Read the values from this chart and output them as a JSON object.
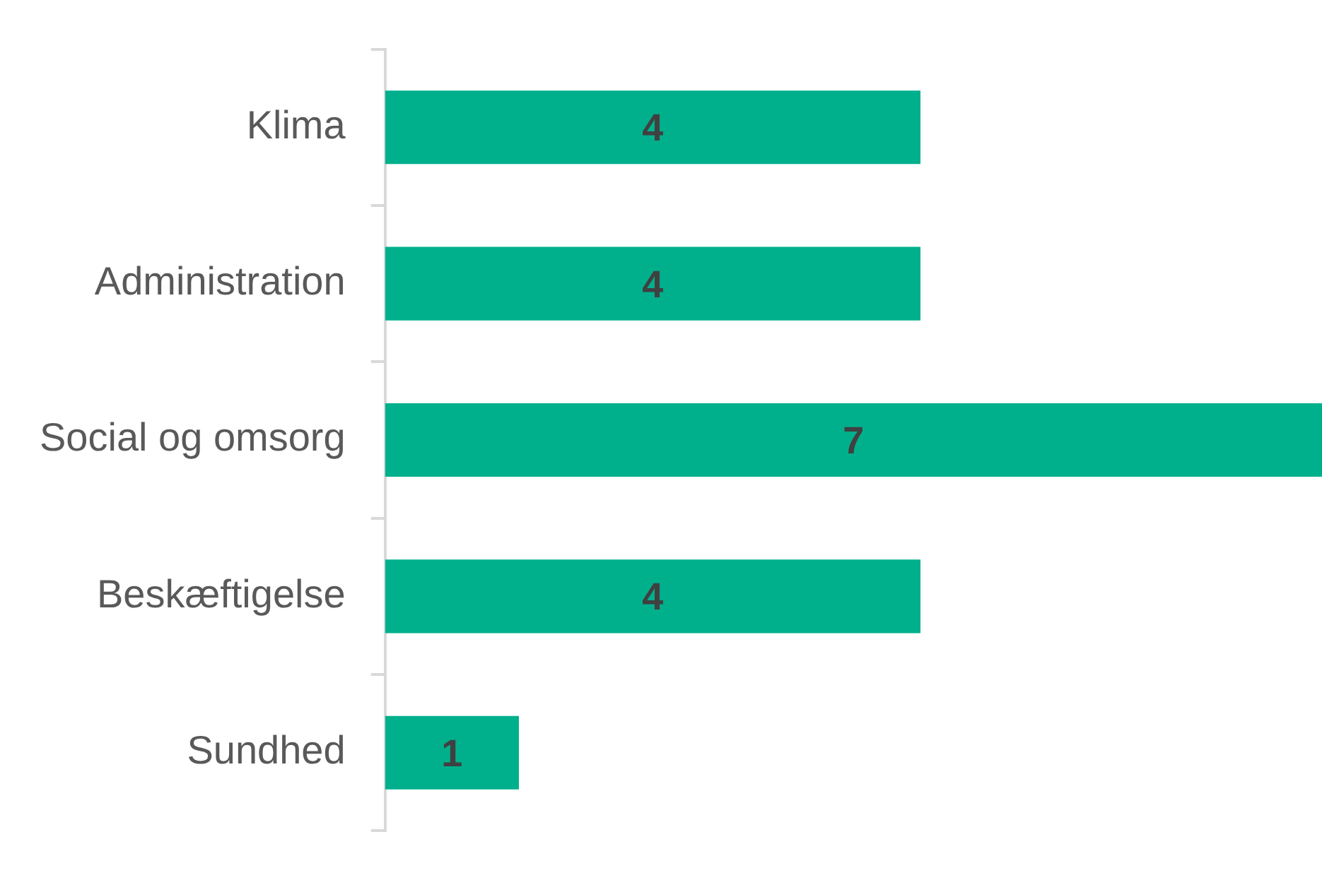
{
  "chart_data": {
    "type": "bar",
    "orientation": "horizontal",
    "categories": [
      "Klima",
      "Administration",
      "Social og omsorg",
      "Beskæftigelse",
      "Sundhed"
    ],
    "values": [
      4,
      4,
      7,
      4,
      1
    ],
    "color": "#00b08c",
    "data_labels": true,
    "grid": false,
    "legend": false
  }
}
